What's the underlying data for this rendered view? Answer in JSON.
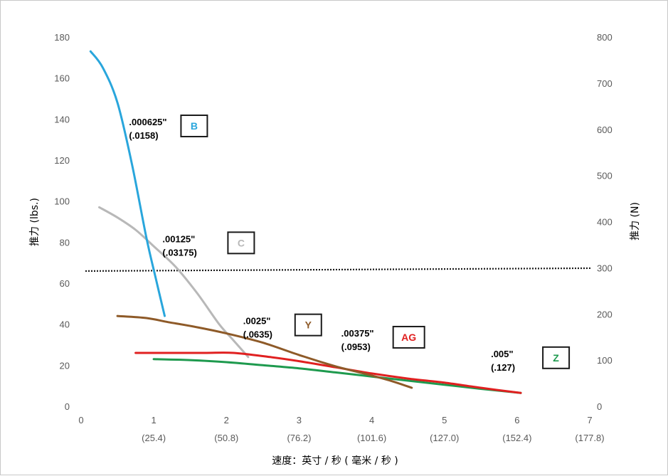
{
  "chart_data": {
    "type": "line",
    "title": "",
    "xlabel": "速度：英寸 / 秒 ( 毫米 / 秒 )",
    "ylabel_left": "推力 (lbs.)",
    "ylabel_right": "推力 (N)",
    "xlim": [
      0,
      7
    ],
    "ylim_left": [
      0,
      180
    ],
    "ylim_right": [
      0,
      800
    ],
    "grid": false,
    "x_ticks": [
      {
        "value": 0,
        "label": "0",
        "sub": ""
      },
      {
        "value": 1,
        "label": "1",
        "sub": "(25.4)"
      },
      {
        "value": 2,
        "label": "2",
        "sub": "(50.8)"
      },
      {
        "value": 3,
        "label": "3",
        "sub": "(76.2)"
      },
      {
        "value": 4,
        "label": "4",
        "sub": "(101.6)"
      },
      {
        "value": 5,
        "label": "5",
        "sub": "(127.0)"
      },
      {
        "value": 6,
        "label": "6",
        "sub": "(152.4)"
      },
      {
        "value": 7,
        "label": "7",
        "sub": "(177.8)"
      }
    ],
    "y_ticks_left": [
      "0",
      "20",
      "40",
      "60",
      "80",
      "100",
      "120",
      "140",
      "160",
      "180"
    ],
    "y_ticks_right": [
      "0",
      "100",
      "200",
      "300",
      "400",
      "500",
      "600",
      "700",
      "800"
    ],
    "reference_line": {
      "y": 68,
      "style": "dotted",
      "color": "#1a1a1a"
    },
    "series": [
      {
        "name": "B",
        "color": "#29a6dc",
        "points": [
          [
            0.13,
            173
          ],
          [
            0.3,
            165
          ],
          [
            0.5,
            148
          ],
          [
            0.7,
            118
          ],
          [
            0.9,
            82
          ],
          [
            1.03,
            62
          ],
          [
            1.15,
            44
          ]
        ],
        "annotation": {
          "line1": ".000625\"",
          "line2": "(.0158)",
          "badge": "B",
          "badge_color": "#29a6dc",
          "at": [
            0.66,
            137
          ]
        }
      },
      {
        "name": "C",
        "color": "#b8b8b8",
        "points": [
          [
            0.25,
            97
          ],
          [
            0.5,
            92
          ],
          [
            0.75,
            86
          ],
          [
            1.0,
            78
          ],
          [
            1.3,
            68
          ],
          [
            1.6,
            55
          ],
          [
            1.9,
            40
          ],
          [
            2.1,
            32
          ],
          [
            2.3,
            24
          ]
        ],
        "annotation": {
          "line1": ".00125\"",
          "line2": "(.03175)",
          "badge": "C",
          "badge_color": "#b8b8b8",
          "at": [
            1.12,
            80
          ]
        }
      },
      {
        "name": "Y",
        "color": "#8e5a28",
        "points": [
          [
            0.5,
            44
          ],
          [
            0.9,
            43
          ],
          [
            1.2,
            41
          ],
          [
            1.6,
            38.5
          ],
          [
            2.0,
            35.5
          ],
          [
            2.5,
            31
          ],
          [
            3.0,
            25
          ],
          [
            3.5,
            19.5
          ],
          [
            4.0,
            15
          ],
          [
            4.3,
            12
          ],
          [
            4.55,
            9
          ]
        ],
        "annotation": {
          "line1": ".0025\"",
          "line2": "(.0635)",
          "badge": "Y",
          "badge_color": "#8e5a28",
          "at": [
            2.23,
            40
          ]
        }
      },
      {
        "name": "AG",
        "color": "#e02020",
        "points": [
          [
            0.75,
            26
          ],
          [
            1.2,
            26
          ],
          [
            1.7,
            26
          ],
          [
            2.1,
            26
          ],
          [
            2.6,
            24
          ],
          [
            3.0,
            22
          ],
          [
            3.5,
            19
          ],
          [
            4.0,
            16
          ],
          [
            4.5,
            13.5
          ],
          [
            5.0,
            11.5
          ],
          [
            5.5,
            9
          ],
          [
            6.05,
            6.5
          ]
        ],
        "annotation": {
          "line1": ".00375\"",
          "line2": "(.0953)",
          "badge": "AG",
          "badge_color": "#e02020",
          "at": [
            3.58,
            34
          ]
        }
      },
      {
        "name": "Z",
        "color": "#1e9a4e",
        "points": [
          [
            1.0,
            23
          ],
          [
            1.5,
            22.5
          ],
          [
            2.0,
            21.5
          ],
          [
            2.5,
            20
          ],
          [
            3.0,
            18.5
          ],
          [
            3.5,
            16.5
          ],
          [
            4.0,
            14.5
          ],
          [
            4.5,
            12.5
          ],
          [
            5.0,
            10.5
          ],
          [
            5.5,
            8.5
          ],
          [
            6.05,
            6.5
          ]
        ],
        "annotation": {
          "line1": ".005\"",
          "line2": "(.127)",
          "badge": "Z",
          "badge_color": "#1e9a4e",
          "at": [
            5.64,
            24
          ]
        }
      }
    ]
  }
}
